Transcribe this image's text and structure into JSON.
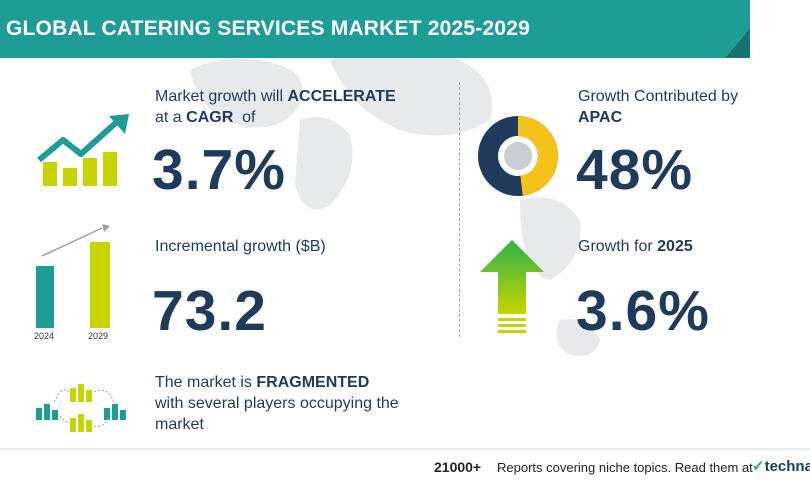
{
  "header": {
    "title": "GLOBAL CATERING SERVICES MARKET 2025-2029"
  },
  "cagr_block": {
    "line1_prefix": "Market growth will ",
    "line1_bold": "ACCELERATE",
    "line2_prefix": "at a ",
    "line2_bold": "CAGR",
    "line2_suffix": "  of",
    "value": "3.7%"
  },
  "incremental_block": {
    "label": "Incremental growth ($B)",
    "value": "73.2",
    "bar_years": [
      "2024",
      "2029"
    ]
  },
  "fragmented_block": {
    "line1_prefix": "The market is ",
    "line1_bold": "FRAGMENTED",
    "line2": "with several players occupying the",
    "line3": "market"
  },
  "apac_block": {
    "line1": "Growth Contributed by",
    "line2_bold": "APAC",
    "value": "48%",
    "share": 0.48
  },
  "growth2025_block": {
    "label_prefix": "Growth for ",
    "label_bold": "2025",
    "value": "3.6%"
  },
  "footer": {
    "count": "21000+",
    "text": "Reports covering niche topics. Read them at",
    "logo": "technavio"
  },
  "colors": {
    "teal": "#1e9c96",
    "navy": "#1f3a5a",
    "lime": "#c8d400",
    "yellow": "#f5c21b",
    "green": "#2bb34a"
  }
}
